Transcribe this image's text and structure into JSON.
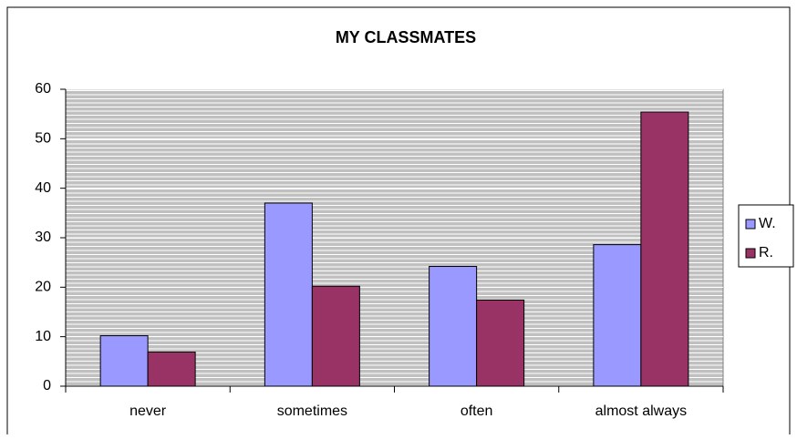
{
  "chart_data": {
    "type": "bar",
    "title": "MY CLASSMATES",
    "categories": [
      "never",
      "sometimes",
      "often",
      "almost always"
    ],
    "series": [
      {
        "name": "W.",
        "color": "#9999ff",
        "values": [
          10.2,
          37,
          24.2,
          28.6
        ]
      },
      {
        "name": "R.",
        "color": "#993366",
        "values": [
          6.9,
          20.2,
          17.4,
          55.4
        ]
      }
    ],
    "ylim": [
      0,
      60
    ],
    "yticks": [
      0,
      10,
      20,
      30,
      40,
      50,
      60
    ],
    "grid": true,
    "legend": "right"
  }
}
